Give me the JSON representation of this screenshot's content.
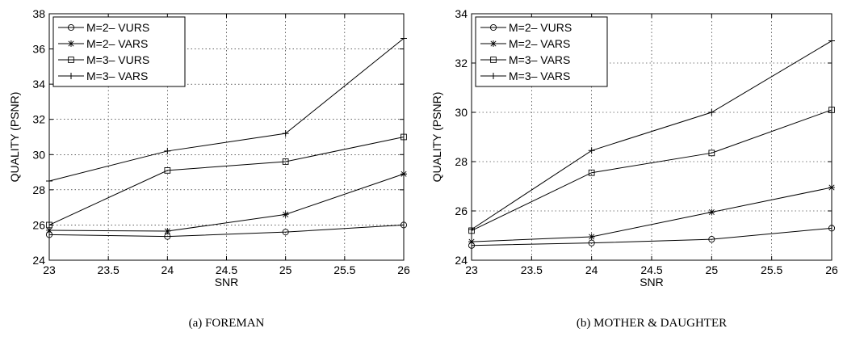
{
  "chart_data": [
    {
      "type": "line",
      "caption": "(a) FOREMAN",
      "xlabel": "SNR",
      "ylabel": "QUALITY (PSNR)",
      "xlim": [
        23,
        26
      ],
      "ylim": [
        24,
        38
      ],
      "xticks": [
        23,
        23.5,
        24,
        24.5,
        25,
        25.5,
        26
      ],
      "yticks": [
        24,
        26,
        28,
        30,
        32,
        34,
        36,
        38
      ],
      "grid": true,
      "legend_position": "top-left",
      "x": [
        23,
        24,
        25,
        26
      ],
      "series": [
        {
          "name": "M=2– VURS",
          "marker": "circle",
          "values": [
            25.45,
            25.35,
            25.6,
            26.0
          ]
        },
        {
          "name": "M=2– VARS",
          "marker": "star",
          "values": [
            25.7,
            25.65,
            26.6,
            28.9
          ]
        },
        {
          "name": "M=3– VURS",
          "marker": "square",
          "values": [
            26.0,
            29.1,
            29.6,
            31.0
          ]
        },
        {
          "name": "M=3– VARS",
          "marker": "plus",
          "values": [
            28.5,
            30.2,
            31.2,
            36.6
          ]
        }
      ]
    },
    {
      "type": "line",
      "caption": "(b) MOTHER & DAUGHTER",
      "xlabel": "SNR",
      "ylabel": "QUALITY (PSNR)",
      "xlim": [
        23,
        26
      ],
      "ylim": [
        24,
        34
      ],
      "xticks": [
        23,
        23.5,
        24,
        24.5,
        25,
        25.5,
        26
      ],
      "yticks": [
        24,
        26,
        28,
        30,
        32,
        34
      ],
      "grid": true,
      "legend_position": "top-left",
      "x": [
        23,
        24,
        25,
        26
      ],
      "series": [
        {
          "name": "M=2– VURS",
          "marker": "circle",
          "values": [
            24.6,
            24.7,
            24.85,
            25.3
          ]
        },
        {
          "name": "M=2– VARS",
          "marker": "star",
          "values": [
            24.75,
            24.95,
            25.95,
            26.95
          ]
        },
        {
          "name": "M=3– VARS",
          "marker": "square",
          "values": [
            25.2,
            27.55,
            28.35,
            30.1
          ]
        },
        {
          "name": "M=3– VARS",
          "marker": "plus",
          "values": [
            25.25,
            28.45,
            30.0,
            32.9
          ]
        }
      ]
    }
  ]
}
